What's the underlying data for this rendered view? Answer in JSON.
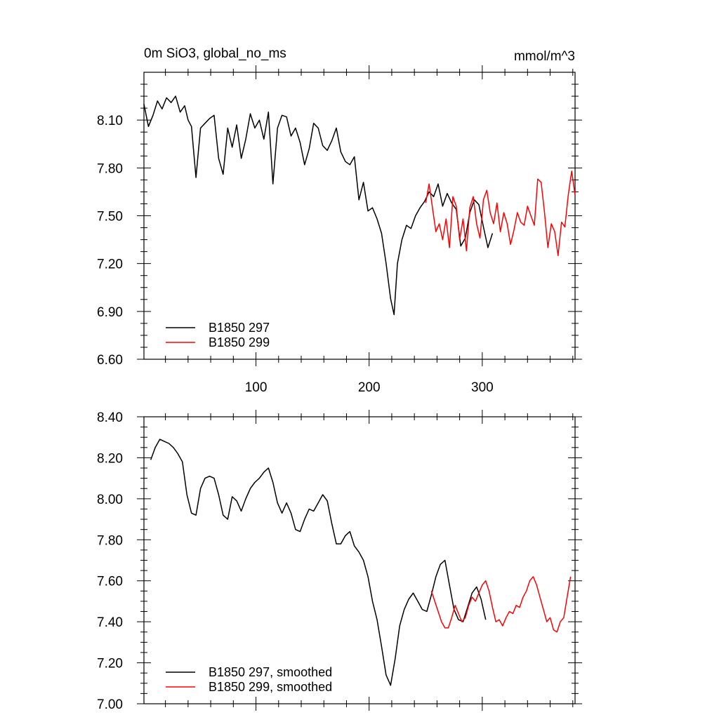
{
  "chart_data": [
    {
      "type": "line",
      "title": "0m SiO3, global_no_ms",
      "units": "mmol/m^3",
      "xlim": [
        1,
        382
      ],
      "ylim": [
        6.6,
        8.4
      ],
      "x_ticks": [
        100,
        200,
        300
      ],
      "x_tick_labels": [
        "100",
        "200",
        "300"
      ],
      "y_ticks": [
        6.6,
        6.9,
        7.2,
        7.5,
        7.8,
        8.1
      ],
      "y_tick_labels": [
        "6.60",
        "6.90",
        "7.20",
        "7.50",
        "7.80",
        "8.10"
      ],
      "legend_position": "bottom-left",
      "series": [
        {
          "name": "B1850 297",
          "color": "#000000",
          "x": [
            1,
            5,
            9,
            13,
            17,
            21,
            25,
            29,
            33,
            37,
            40,
            43,
            47,
            51,
            55,
            59,
            63,
            67,
            71,
            75,
            79,
            83,
            87,
            91,
            95,
            99,
            103,
            107,
            111,
            115,
            119,
            123,
            127,
            131,
            135,
            139,
            143,
            147,
            151,
            155,
            159,
            163,
            167,
            171,
            175,
            179,
            183,
            187,
            191,
            195,
            199,
            203,
            207,
            211,
            215,
            219,
            222,
            225,
            229,
            233,
            237,
            241,
            245,
            249,
            253,
            257,
            261,
            265,
            269,
            273,
            277,
            281,
            285,
            289,
            293,
            297,
            301,
            305,
            309
          ],
          "values": [
            8.2,
            8.06,
            8.13,
            8.22,
            8.17,
            8.24,
            8.21,
            8.25,
            8.15,
            8.19,
            8.1,
            8.06,
            7.74,
            8.05,
            8.08,
            8.11,
            8.13,
            7.86,
            7.76,
            8.05,
            7.93,
            8.07,
            7.86,
            7.98,
            8.14,
            8.05,
            8.1,
            7.98,
            8.15,
            7.7,
            8.05,
            8.13,
            8.12,
            8.0,
            8.05,
            7.96,
            7.82,
            7.92,
            8.08,
            8.05,
            7.94,
            7.91,
            7.97,
            8.05,
            7.9,
            7.84,
            7.82,
            7.87,
            7.6,
            7.71,
            7.53,
            7.55,
            7.48,
            7.39,
            7.2,
            6.98,
            6.88,
            7.2,
            7.35,
            7.44,
            7.42,
            7.5,
            7.55,
            7.59,
            7.65,
            7.62,
            7.7,
            7.56,
            7.64,
            7.58,
            7.54,
            7.31,
            7.36,
            7.52,
            7.6,
            7.57,
            7.43,
            7.3,
            7.39
          ]
        },
        {
          "name": "B1850 299",
          "color": "#ff0000",
          "x": [
            250,
            253,
            256,
            259,
            262,
            265,
            268,
            271,
            274,
            277,
            280,
            283,
            286,
            289,
            292,
            295,
            298,
            301,
            304,
            307,
            310,
            313,
            316,
            319,
            322,
            325,
            328,
            331,
            334,
            337,
            340,
            343,
            346,
            349,
            352,
            355,
            358,
            361,
            364,
            367,
            370,
            373,
            376,
            379,
            382
          ],
          "values": [
            7.58,
            7.7,
            7.55,
            7.4,
            7.45,
            7.35,
            7.48,
            7.3,
            7.62,
            7.56,
            7.35,
            7.48,
            7.28,
            7.55,
            7.62,
            7.45,
            7.36,
            7.6,
            7.66,
            7.52,
            7.45,
            7.58,
            7.4,
            7.52,
            7.45,
            7.32,
            7.41,
            7.52,
            7.46,
            7.44,
            7.56,
            7.5,
            7.44,
            7.73,
            7.71,
            7.52,
            7.3,
            7.45,
            7.4,
            7.25,
            7.46,
            7.43,
            7.63,
            7.78,
            7.63
          ]
        }
      ]
    },
    {
      "type": "line",
      "title": "",
      "xlim": [
        1,
        382
      ],
      "ylim": [
        7.0,
        8.4
      ],
      "y_ticks": [
        7.0,
        7.2,
        7.4,
        7.6,
        7.8,
        8.0,
        8.2,
        8.4
      ],
      "y_tick_labels": [
        "7.00",
        "7.20",
        "7.40",
        "7.60",
        "7.80",
        "8.00",
        "8.20",
        "8.40"
      ],
      "legend_position": "bottom-left",
      "series": [
        {
          "name": "B1850 297, smoothed",
          "color": "#000000",
          "x": [
            7,
            11,
            15,
            19,
            23,
            27,
            31,
            35,
            39,
            43,
            47,
            51,
            55,
            59,
            63,
            67,
            71,
            75,
            79,
            83,
            87,
            91,
            95,
            99,
            103,
            107,
            111,
            115,
            119,
            123,
            127,
            131,
            135,
            139,
            143,
            147,
            151,
            155,
            159,
            163,
            167,
            171,
            175,
            179,
            183,
            187,
            191,
            195,
            199,
            203,
            207,
            211,
            215,
            219,
            223,
            227,
            231,
            235,
            239,
            243,
            247,
            251,
            255,
            259,
            263,
            267,
            271,
            275,
            279,
            283,
            287,
            291,
            295,
            299,
            303
          ],
          "values": [
            8.19,
            8.25,
            8.29,
            8.28,
            8.27,
            8.25,
            8.22,
            8.18,
            8.02,
            7.93,
            7.92,
            8.05,
            8.1,
            8.11,
            8.1,
            8.02,
            7.92,
            7.9,
            8.01,
            7.99,
            7.94,
            8.0,
            8.05,
            8.08,
            8.1,
            8.13,
            8.15,
            8.08,
            7.98,
            7.93,
            7.98,
            7.93,
            7.85,
            7.84,
            7.9,
            7.95,
            7.94,
            7.98,
            8.02,
            7.99,
            7.88,
            7.78,
            7.78,
            7.82,
            7.84,
            7.77,
            7.74,
            7.7,
            7.62,
            7.5,
            7.41,
            7.28,
            7.14,
            7.09,
            7.22,
            7.38,
            7.46,
            7.51,
            7.54,
            7.5,
            7.46,
            7.45,
            7.53,
            7.62,
            7.68,
            7.7,
            7.58,
            7.46,
            7.41,
            7.4,
            7.47,
            7.54,
            7.57,
            7.51,
            7.41
          ]
        },
        {
          "name": "B1850 299, smoothed",
          "color": "#ff0000",
          "x": [
            255,
            258,
            261,
            264,
            267,
            270,
            273,
            276,
            279,
            282,
            285,
            288,
            291,
            294,
            297,
            300,
            303,
            306,
            309,
            312,
            315,
            318,
            321,
            324,
            327,
            330,
            333,
            336,
            339,
            342,
            345,
            348,
            351,
            354,
            357,
            360,
            363,
            366,
            369,
            372,
            375,
            378
          ],
          "values": [
            7.55,
            7.5,
            7.45,
            7.4,
            7.37,
            7.37,
            7.42,
            7.48,
            7.44,
            7.4,
            7.42,
            7.48,
            7.52,
            7.5,
            7.54,
            7.58,
            7.6,
            7.55,
            7.47,
            7.4,
            7.41,
            7.38,
            7.42,
            7.45,
            7.44,
            7.48,
            7.47,
            7.52,
            7.55,
            7.6,
            7.62,
            7.58,
            7.52,
            7.46,
            7.4,
            7.42,
            7.36,
            7.35,
            7.4,
            7.42,
            7.52,
            7.62
          ]
        }
      ]
    }
  ]
}
